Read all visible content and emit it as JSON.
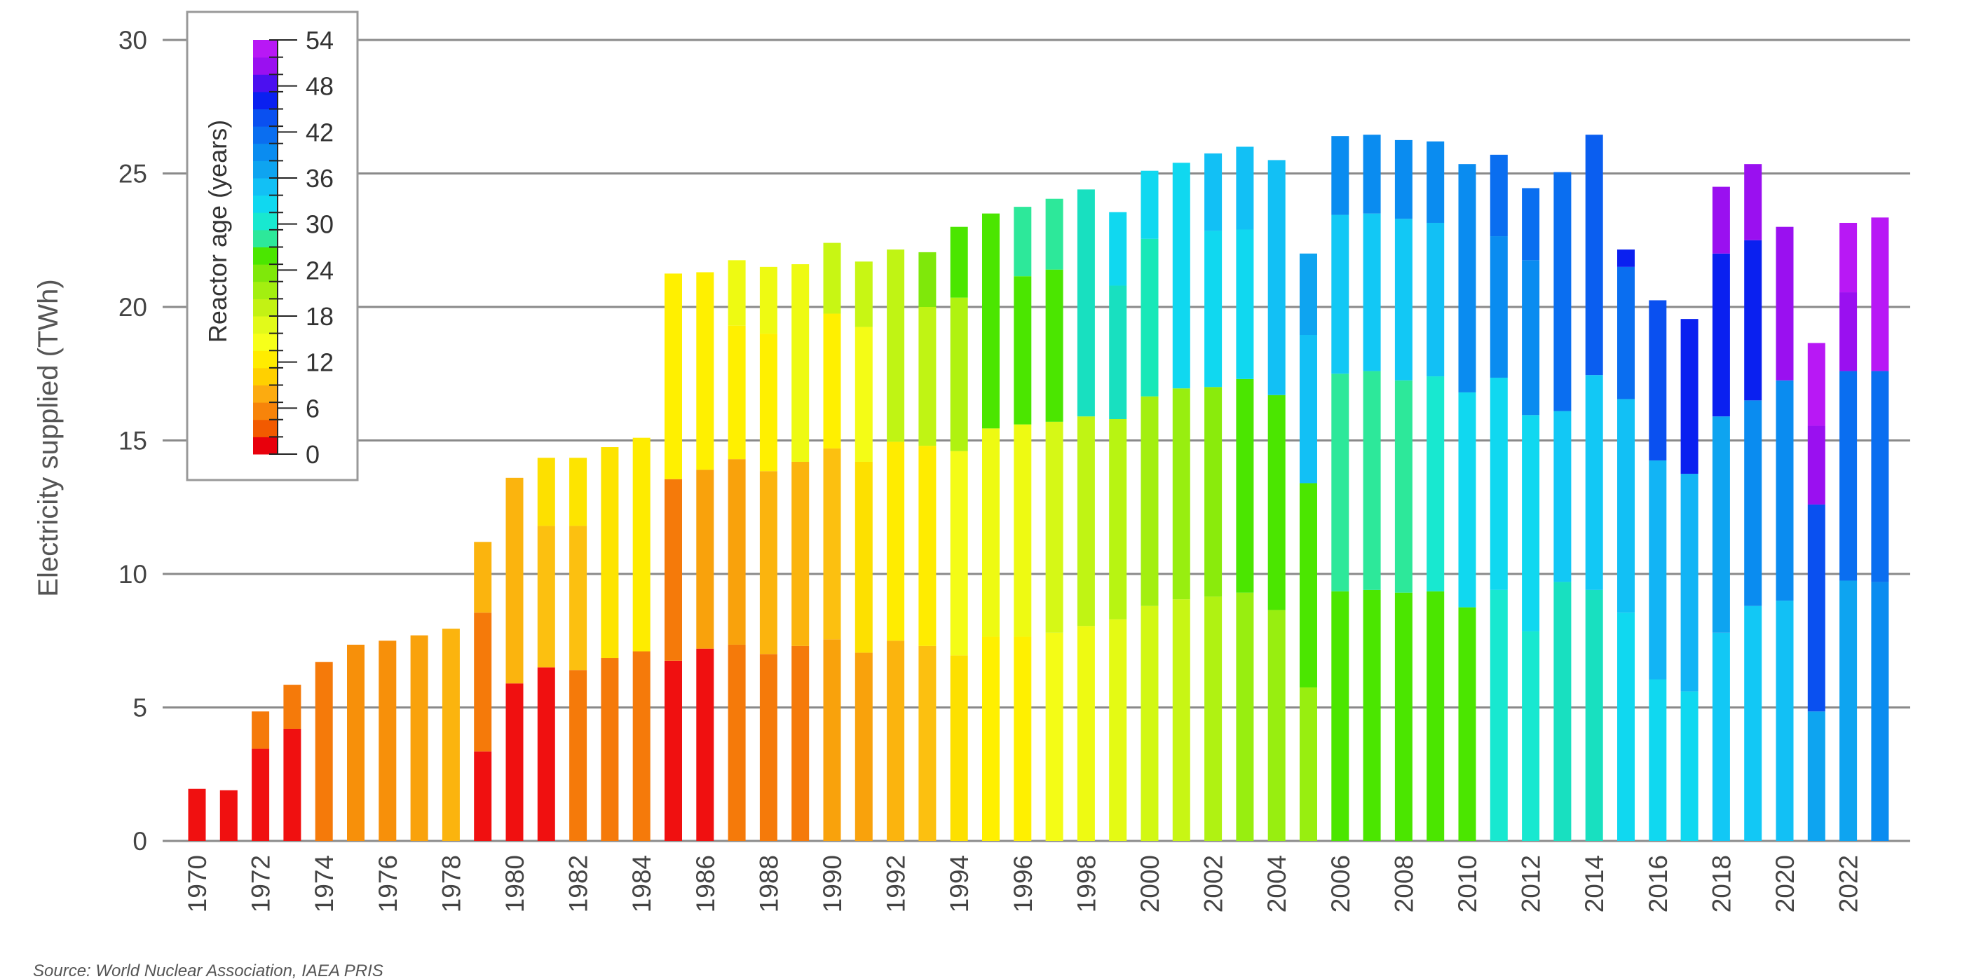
{
  "chart_data": {
    "type": "bar",
    "stacked": true,
    "ylabel": "Electricity supplied (TWh)",
    "xlabel": "",
    "ylim": [
      0,
      30
    ],
    "yticks": [
      0,
      5,
      10,
      15,
      20,
      25,
      30
    ],
    "grid": true,
    "x_tick_years": [
      1970,
      1972,
      1974,
      1976,
      1978,
      1980,
      1982,
      1984,
      1986,
      1988,
      1990,
      1992,
      1994,
      1996,
      1998,
      2000,
      2002,
      2004,
      2006,
      2008,
      2010,
      2012,
      2014,
      2016,
      2018,
      2020,
      2022
    ],
    "x_tick_labels": [
      "1970",
      "1972",
      "1974",
      "1976",
      "1978",
      "1980",
      "1982",
      "1984",
      "1986",
      "1988",
      "1990",
      "1992",
      "1994",
      "1996",
      "1998",
      "2000",
      "2002",
      "2004",
      "2006",
      "2008",
      "2010",
      "2012",
      "2014",
      "2016",
      "2018",
      "2020",
      "2022"
    ],
    "legend": {
      "title": "Reactor age (years)",
      "placement": "top-left",
      "tick_labels": [
        "0",
        "6",
        "12",
        "18",
        "24",
        "30",
        "36",
        "42",
        "48",
        "54"
      ],
      "color_scale": [
        "#e8000c",
        "#f25a00",
        "#f7840a",
        "#fcab10",
        "#ffd000",
        "#ffec00",
        "#f7ff1a",
        "#e2fa1a",
        "#c3f214",
        "#a3ef10",
        "#7fe80a",
        "#4be600",
        "#2de89a",
        "#18e8d0",
        "#10d8f0",
        "#12c0f5",
        "#0ea4f0",
        "#0a8cf0",
        "#0a6ef0",
        "#0a50f0",
        "#0a20f0",
        "#4b10f0",
        "#9a10f0",
        "#b818f5"
      ]
    },
    "series": [
      {
        "year": 1970,
        "segments": [
          {
            "value": 1.95,
            "color": "#f01010"
          }
        ]
      },
      {
        "year": 1971,
        "segments": [
          {
            "value": 1.9,
            "color": "#f01010"
          }
        ]
      },
      {
        "year": 1972,
        "segments": [
          {
            "value": 3.45,
            "color": "#f01010"
          },
          {
            "value": 1.4,
            "color": "#f57a0a"
          }
        ]
      },
      {
        "year": 1973,
        "segments": [
          {
            "value": 4.2,
            "color": "#f01010"
          },
          {
            "value": 1.65,
            "color": "#f57a0a"
          }
        ]
      },
      {
        "year": 1974,
        "segments": [
          {
            "value": 6.7,
            "color": "#f57a0a"
          }
        ]
      },
      {
        "year": 1975,
        "segments": [
          {
            "value": 7.35,
            "color": "#f7900a"
          }
        ]
      },
      {
        "year": 1976,
        "segments": [
          {
            "value": 7.5,
            "color": "#f7900a"
          }
        ]
      },
      {
        "year": 1977,
        "segments": [
          {
            "value": 7.7,
            "color": "#f9a20c"
          }
        ]
      },
      {
        "year": 1978,
        "segments": [
          {
            "value": 7.95,
            "color": "#fbb40e"
          }
        ]
      },
      {
        "year": 1979,
        "segments": [
          {
            "value": 3.35,
            "color": "#f01010"
          },
          {
            "value": 5.2,
            "color": "#f57a0a"
          },
          {
            "value": 2.65,
            "color": "#fbb40e"
          }
        ]
      },
      {
        "year": 1980,
        "segments": [
          {
            "value": 5.9,
            "color": "#f01010"
          },
          {
            "value": 7.7,
            "color": "#fbb40e"
          }
        ]
      },
      {
        "year": 1981,
        "segments": [
          {
            "value": 6.5,
            "color": "#f01010"
          },
          {
            "value": 5.3,
            "color": "#fcc010"
          },
          {
            "value": 2.55,
            "color": "#fde000"
          }
        ]
      },
      {
        "year": 1982,
        "segments": [
          {
            "value": 6.4,
            "color": "#f57a0a"
          },
          {
            "value": 5.4,
            "color": "#fcc010"
          },
          {
            "value": 2.55,
            "color": "#fde400"
          }
        ]
      },
      {
        "year": 1983,
        "segments": [
          {
            "value": 6.85,
            "color": "#f57a0a"
          },
          {
            "value": 7.9,
            "color": "#fde400"
          }
        ]
      },
      {
        "year": 1984,
        "segments": [
          {
            "value": 7.1,
            "color": "#f57a0a"
          },
          {
            "value": 8.0,
            "color": "#feec00"
          }
        ]
      },
      {
        "year": 1985,
        "segments": [
          {
            "value": 6.75,
            "color": "#f01010"
          },
          {
            "value": 6.8,
            "color": "#f57a0a"
          },
          {
            "value": 7.7,
            "color": "#fff000"
          }
        ]
      },
      {
        "year": 1986,
        "segments": [
          {
            "value": 7.2,
            "color": "#f01010"
          },
          {
            "value": 6.7,
            "color": "#f9a20c"
          },
          {
            "value": 7.4,
            "color": "#fff000"
          }
        ]
      },
      {
        "year": 1987,
        "segments": [
          {
            "value": 7.35,
            "color": "#f57a0a"
          },
          {
            "value": 6.95,
            "color": "#f9a20c"
          },
          {
            "value": 5.0,
            "color": "#fff000"
          },
          {
            "value": 2.45,
            "color": "#eefa12"
          }
        ]
      },
      {
        "year": 1988,
        "segments": [
          {
            "value": 7.0,
            "color": "#f57a0a"
          },
          {
            "value": 6.85,
            "color": "#fbb40e"
          },
          {
            "value": 5.15,
            "color": "#fff000"
          },
          {
            "value": 2.5,
            "color": "#eefa12"
          }
        ]
      },
      {
        "year": 1989,
        "segments": [
          {
            "value": 7.3,
            "color": "#f57a0a"
          },
          {
            "value": 6.9,
            "color": "#fbb40e"
          },
          {
            "value": 7.4,
            "color": "#eefa12"
          }
        ]
      },
      {
        "year": 1990,
        "segments": [
          {
            "value": 7.55,
            "color": "#f9a20c"
          },
          {
            "value": 7.15,
            "color": "#fcc010"
          },
          {
            "value": 5.05,
            "color": "#fff000"
          },
          {
            "value": 2.65,
            "color": "#c8f614"
          }
        ]
      },
      {
        "year": 1991,
        "segments": [
          {
            "value": 7.05,
            "color": "#f9a20c"
          },
          {
            "value": 7.15,
            "color": "#fde000"
          },
          {
            "value": 5.05,
            "color": "#f4fc16"
          },
          {
            "value": 2.45,
            "color": "#c8f614"
          }
        ]
      },
      {
        "year": 1992,
        "segments": [
          {
            "value": 7.5,
            "color": "#fbb40e"
          },
          {
            "value": 7.45,
            "color": "#ffec00"
          },
          {
            "value": 7.2,
            "color": "#c0f414"
          }
        ]
      },
      {
        "year": 1993,
        "segments": [
          {
            "value": 7.3,
            "color": "#fcc010"
          },
          {
            "value": 7.5,
            "color": "#ffec00"
          },
          {
            "value": 5.2,
            "color": "#c0f414"
          },
          {
            "value": 2.05,
            "color": "#7fe80a"
          }
        ]
      },
      {
        "year": 1994,
        "segments": [
          {
            "value": 6.95,
            "color": "#fde000"
          },
          {
            "value": 7.65,
            "color": "#f4fc16"
          },
          {
            "value": 5.75,
            "color": "#b0f210"
          },
          {
            "value": 2.65,
            "color": "#4be600"
          }
        ]
      },
      {
        "year": 1995,
        "segments": [
          {
            "value": 7.65,
            "color": "#fff000"
          },
          {
            "value": 7.8,
            "color": "#eefa12"
          },
          {
            "value": 8.05,
            "color": "#4be600"
          }
        ]
      },
      {
        "year": 1996,
        "segments": [
          {
            "value": 7.65,
            "color": "#fff000"
          },
          {
            "value": 7.95,
            "color": "#eefa12"
          },
          {
            "value": 5.55,
            "color": "#4be600"
          },
          {
            "value": 2.6,
            "color": "#2de89a"
          }
        ]
      },
      {
        "year": 1997,
        "segments": [
          {
            "value": 7.8,
            "color": "#f4fc16"
          },
          {
            "value": 7.9,
            "color": "#d6f816"
          },
          {
            "value": 5.7,
            "color": "#4be600"
          },
          {
            "value": 2.65,
            "color": "#2de89a"
          }
        ]
      },
      {
        "year": 1998,
        "segments": [
          {
            "value": 8.05,
            "color": "#eefa12"
          },
          {
            "value": 7.85,
            "color": "#c0f414"
          },
          {
            "value": 8.5,
            "color": "#18e0c0"
          }
        ]
      },
      {
        "year": 1999,
        "segments": [
          {
            "value": 8.3,
            "color": "#e4fa14"
          },
          {
            "value": 7.5,
            "color": "#b8f412"
          },
          {
            "value": 5.0,
            "color": "#18e0c0"
          },
          {
            "value": 2.75,
            "color": "#10d8f0"
          }
        ]
      },
      {
        "year": 2000,
        "segments": [
          {
            "value": 8.8,
            "color": "#d2f814"
          },
          {
            "value": 7.85,
            "color": "#a3ef10"
          },
          {
            "value": 5.9,
            "color": "#18e8b8"
          },
          {
            "value": 2.55,
            "color": "#10d8f0"
          }
        ]
      },
      {
        "year": 2001,
        "segments": [
          {
            "value": 9.05,
            "color": "#c8f614"
          },
          {
            "value": 7.9,
            "color": "#98ee10"
          },
          {
            "value": 8.45,
            "color": "#10d8f0"
          }
        ]
      },
      {
        "year": 2002,
        "segments": [
          {
            "value": 9.15,
            "color": "#b0f212"
          },
          {
            "value": 7.85,
            "color": "#8aeb0c"
          },
          {
            "value": 5.85,
            "color": "#10d8f0"
          },
          {
            "value": 2.9,
            "color": "#12c0f5"
          }
        ]
      },
      {
        "year": 2003,
        "segments": [
          {
            "value": 9.3,
            "color": "#98ee10"
          },
          {
            "value": 8.0,
            "color": "#4be600"
          },
          {
            "value": 5.6,
            "color": "#10d8f0"
          },
          {
            "value": 3.1,
            "color": "#12c0f5"
          }
        ]
      },
      {
        "year": 2004,
        "segments": [
          {
            "value": 8.65,
            "color": "#98ee10"
          },
          {
            "value": 8.05,
            "color": "#4be600"
          },
          {
            "value": 8.8,
            "color": "#12c0f5"
          }
        ]
      },
      {
        "year": 2005,
        "segments": [
          {
            "value": 5.75,
            "color": "#98ee10"
          },
          {
            "value": 7.65,
            "color": "#4be600"
          },
          {
            "value": 5.55,
            "color": "#12c0f5"
          },
          {
            "value": 3.05,
            "color": "#0ea4f0"
          }
        ]
      },
      {
        "year": 2006,
        "segments": [
          {
            "value": 9.35,
            "color": "#4be600"
          },
          {
            "value": 8.15,
            "color": "#2de89a"
          },
          {
            "value": 5.95,
            "color": "#12c8f5"
          },
          {
            "value": 2.95,
            "color": "#0a8cf0"
          }
        ]
      },
      {
        "year": 2007,
        "segments": [
          {
            "value": 9.4,
            "color": "#4be600"
          },
          {
            "value": 8.2,
            "color": "#2de89a"
          },
          {
            "value": 5.9,
            "color": "#12c8f5"
          },
          {
            "value": 2.95,
            "color": "#0a8cf0"
          }
        ]
      },
      {
        "year": 2008,
        "segments": [
          {
            "value": 9.3,
            "color": "#4be600"
          },
          {
            "value": 7.95,
            "color": "#2de89a"
          },
          {
            "value": 6.05,
            "color": "#12c8f5"
          },
          {
            "value": 2.95,
            "color": "#0a8cf0"
          }
        ]
      },
      {
        "year": 2009,
        "segments": [
          {
            "value": 9.35,
            "color": "#4be600"
          },
          {
            "value": 8.05,
            "color": "#18e8d0"
          },
          {
            "value": 5.75,
            "color": "#12c0f5"
          },
          {
            "value": 3.05,
            "color": "#0a8cf0"
          }
        ]
      },
      {
        "year": 2010,
        "segments": [
          {
            "value": 8.75,
            "color": "#4be600"
          },
          {
            "value": 8.05,
            "color": "#10d8f0"
          },
          {
            "value": 8.55,
            "color": "#0a8cf0"
          }
        ]
      },
      {
        "year": 2011,
        "segments": [
          {
            "value": 9.4,
            "color": "#18e8d0"
          },
          {
            "value": 7.95,
            "color": "#10d8f0"
          },
          {
            "value": 5.3,
            "color": "#0a8cf0"
          },
          {
            "value": 3.05,
            "color": "#0a6ef0"
          }
        ]
      },
      {
        "year": 2012,
        "segments": [
          {
            "value": 7.85,
            "color": "#18e8d0"
          },
          {
            "value": 8.1,
            "color": "#10d8f0"
          },
          {
            "value": 5.8,
            "color": "#0a8cf0"
          },
          {
            "value": 2.7,
            "color": "#0a6ef0"
          }
        ]
      },
      {
        "year": 2013,
        "segments": [
          {
            "value": 9.7,
            "color": "#18e0c0"
          },
          {
            "value": 6.4,
            "color": "#12c8f5"
          },
          {
            "value": 8.95,
            "color": "#0a6ef0"
          }
        ]
      },
      {
        "year": 2014,
        "segments": [
          {
            "value": 9.4,
            "color": "#18e0c0"
          },
          {
            "value": 8.05,
            "color": "#12c8f5"
          },
          {
            "value": 9.0,
            "color": "#0a5ef0"
          }
        ]
      },
      {
        "year": 2015,
        "segments": [
          {
            "value": 8.55,
            "color": "#10d8f0"
          },
          {
            "value": 8.0,
            "color": "#12c0f5"
          },
          {
            "value": 4.95,
            "color": "#0a6ef0"
          },
          {
            "value": 0.65,
            "color": "#0a20f0"
          }
        ]
      },
      {
        "year": 2016,
        "segments": [
          {
            "value": 6.05,
            "color": "#10d8f0"
          },
          {
            "value": 8.2,
            "color": "#12b4f5"
          },
          {
            "value": 6.0,
            "color": "#0a50f0"
          }
        ]
      },
      {
        "year": 2017,
        "segments": [
          {
            "value": 5.6,
            "color": "#10d8f0"
          },
          {
            "value": 8.15,
            "color": "#12b4f5"
          },
          {
            "value": 5.8,
            "color": "#0a20f0"
          }
        ]
      },
      {
        "year": 2018,
        "segments": [
          {
            "value": 7.8,
            "color": "#12c8f5"
          },
          {
            "value": 8.1,
            "color": "#0ea4f0"
          },
          {
            "value": 6.1,
            "color": "#0a20f0"
          },
          {
            "value": 2.5,
            "color": "#9a10f0"
          }
        ]
      },
      {
        "year": 2019,
        "segments": [
          {
            "value": 8.8,
            "color": "#12c8f5"
          },
          {
            "value": 7.7,
            "color": "#0a8cf0"
          },
          {
            "value": 6.0,
            "color": "#0a20f0"
          },
          {
            "value": 2.85,
            "color": "#9a10f0"
          }
        ]
      },
      {
        "year": 2020,
        "segments": [
          {
            "value": 9.0,
            "color": "#12c0f5"
          },
          {
            "value": 8.25,
            "color": "#0a8cf0"
          },
          {
            "value": 5.75,
            "color": "#9a10f0"
          }
        ]
      },
      {
        "year": 2021,
        "segments": [
          {
            "value": 4.85,
            "color": "#0ea4f0"
          },
          {
            "value": 7.75,
            "color": "#0a50f0"
          },
          {
            "value": 2.95,
            "color": "#9a10f0"
          },
          {
            "value": 3.1,
            "color": "#b818f5"
          }
        ]
      },
      {
        "year": 2022,
        "segments": [
          {
            "value": 9.75,
            "color": "#0ea4f0"
          },
          {
            "value": 7.85,
            "color": "#0a6ef0"
          },
          {
            "value": 2.95,
            "color": "#9a10f0"
          },
          {
            "value": 2.6,
            "color": "#b818f5"
          }
        ]
      },
      {
        "year": 2023,
        "segments": [
          {
            "value": 9.7,
            "color": "#0a8cf0"
          },
          {
            "value": 7.9,
            "color": "#0a6ef0"
          },
          {
            "value": 5.75,
            "color": "#b818f5"
          }
        ]
      }
    ],
    "source": "Source: World Nuclear Association, IAEA PRIS"
  }
}
